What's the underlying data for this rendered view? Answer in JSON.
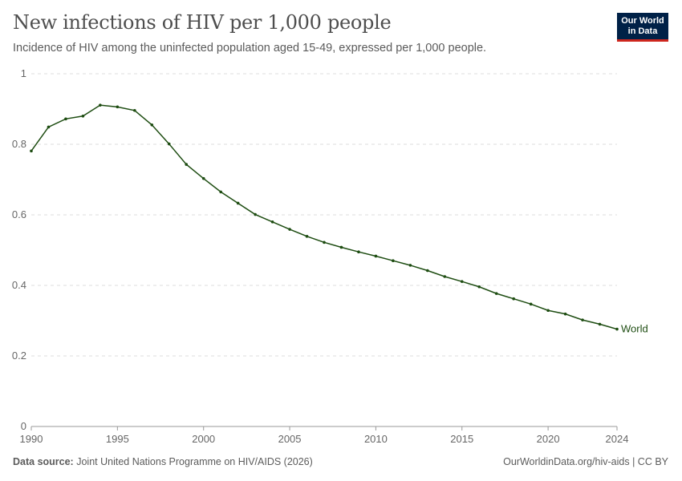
{
  "header": {
    "title": "New infections of HIV per 1,000 people",
    "subtitle": "Incidence of HIV among the uninfected population aged 15-49, expressed per 1,000 people.",
    "logo": "Our World in Data"
  },
  "footer": {
    "source_label": "Data source:",
    "source": "Joint United Nations Programme on HIV/AIDS (2026)",
    "link": "OurWorldinData.org/hiv-aids | CC BY"
  },
  "colors": {
    "series": "#1e4d12",
    "grid": "#dddddd"
  },
  "chart_data": {
    "type": "line",
    "title": "New infections of HIV per 1,000 people",
    "x": [
      1990,
      1991,
      1992,
      1993,
      1994,
      1995,
      1996,
      1997,
      1998,
      1999,
      2000,
      2001,
      2002,
      2003,
      2004,
      2005,
      2006,
      2007,
      2008,
      2009,
      2010,
      2011,
      2012,
      2013,
      2014,
      2015,
      2016,
      2017,
      2018,
      2019,
      2020,
      2021,
      2022,
      2023,
      2024
    ],
    "series": [
      {
        "name": "World",
        "values": [
          0.781,
          0.849,
          0.872,
          0.88,
          0.911,
          0.906,
          0.896,
          0.855,
          0.801,
          0.743,
          0.703,
          0.665,
          0.633,
          0.601,
          0.58,
          0.559,
          0.539,
          0.522,
          0.508,
          0.495,
          0.483,
          0.47,
          0.457,
          0.442,
          0.425,
          0.411,
          0.396,
          0.377,
          0.362,
          0.347,
          0.329,
          0.319,
          0.302,
          0.29,
          0.276
        ]
      }
    ],
    "xlim": [
      1990,
      2024
    ],
    "ylim": [
      0,
      1
    ],
    "xticks": [
      "1990",
      "1995",
      "2000",
      "2005",
      "2010",
      "2015",
      "2020",
      "2024"
    ],
    "yticks": [
      "0",
      "0.2",
      "0.4",
      "0.6",
      "0.8",
      "1"
    ],
    "grid": "horizontal dashed",
    "legend": "line-end label"
  }
}
